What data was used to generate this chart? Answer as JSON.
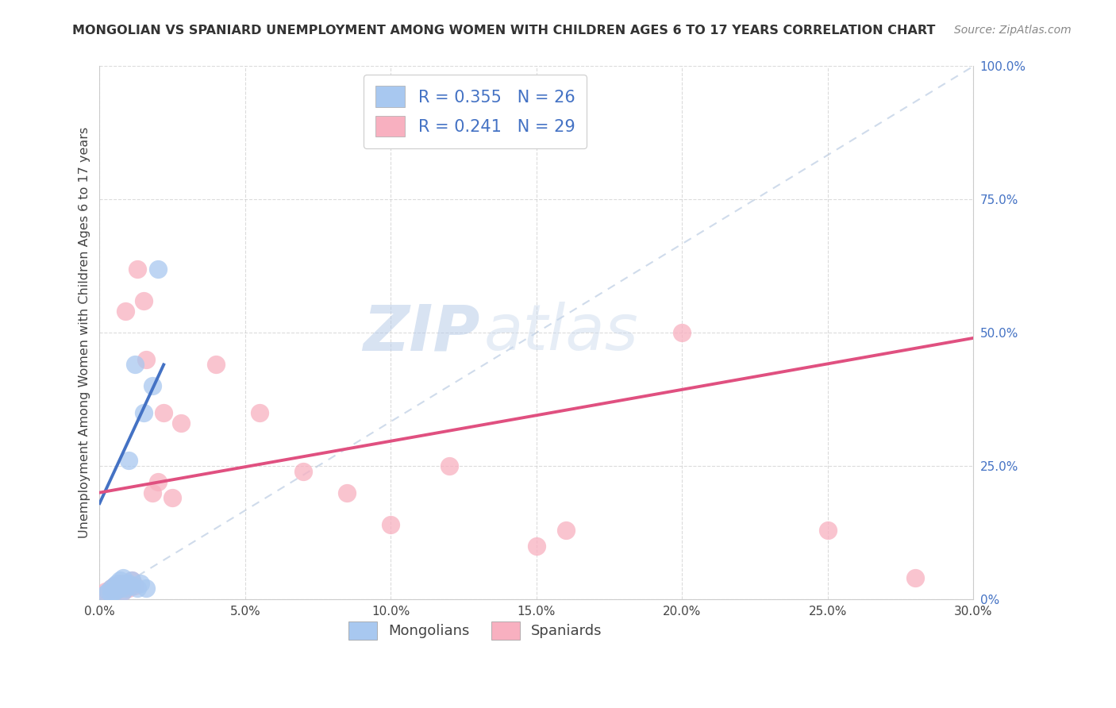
{
  "title": "MONGOLIAN VS SPANIARD UNEMPLOYMENT AMONG WOMEN WITH CHILDREN AGES 6 TO 17 YEARS CORRELATION CHART",
  "source": "Source: ZipAtlas.com",
  "ylabel": "Unemployment Among Women with Children Ages 6 to 17 years",
  "xlim": [
    0.0,
    0.3
  ],
  "ylim": [
    0.0,
    1.0
  ],
  "xticks": [
    0.0,
    0.05,
    0.1,
    0.15,
    0.2,
    0.25,
    0.3
  ],
  "xticklabels": [
    "0.0%",
    "5.0%",
    "10.0%",
    "15.0%",
    "20.0%",
    "25.0%",
    "30.0%"
  ],
  "yticks": [
    0.0,
    0.25,
    0.5,
    0.75,
    1.0
  ],
  "yticklabels": [
    "0%",
    "25.0%",
    "50.0%",
    "75.0%",
    "100.0%"
  ],
  "legend_mongolians": "R = 0.355   N = 26",
  "legend_spaniards": "R = 0.241   N = 29",
  "mongolian_color": "#a8c8f0",
  "spaniard_color": "#f8b0c0",
  "mongolian_line_color": "#4472c4",
  "spaniard_line_color": "#e05080",
  "diagonal_color": "#b0c4de",
  "background_color": "#ffffff",
  "grid_color": "#cccccc",
  "watermark_zip": "ZIP",
  "watermark_atlas": "atlas",
  "mongolian_x": [
    0.002,
    0.003,
    0.004,
    0.004,
    0.005,
    0.005,
    0.006,
    0.006,
    0.007,
    0.007,
    0.008,
    0.008,
    0.008,
    0.009,
    0.009,
    0.01,
    0.01,
    0.011,
    0.011,
    0.012,
    0.013,
    0.014,
    0.015,
    0.016,
    0.018,
    0.02
  ],
  "mongolian_y": [
    0.01,
    0.015,
    0.012,
    0.02,
    0.015,
    0.025,
    0.018,
    0.03,
    0.02,
    0.035,
    0.015,
    0.025,
    0.04,
    0.02,
    0.03,
    0.03,
    0.26,
    0.025,
    0.035,
    0.44,
    0.02,
    0.03,
    0.35,
    0.02,
    0.4,
    0.62
  ],
  "spaniard_x": [
    0.002,
    0.004,
    0.005,
    0.006,
    0.007,
    0.008,
    0.009,
    0.01,
    0.011,
    0.012,
    0.013,
    0.015,
    0.016,
    0.018,
    0.02,
    0.022,
    0.025,
    0.028,
    0.04,
    0.055,
    0.07,
    0.085,
    0.1,
    0.12,
    0.15,
    0.16,
    0.2,
    0.25,
    0.28
  ],
  "spaniard_y": [
    0.015,
    0.02,
    0.025,
    0.018,
    0.03,
    0.015,
    0.54,
    0.02,
    0.035,
    0.025,
    0.62,
    0.56,
    0.45,
    0.2,
    0.22,
    0.35,
    0.19,
    0.33,
    0.44,
    0.35,
    0.24,
    0.2,
    0.14,
    0.25,
    0.1,
    0.13,
    0.5,
    0.13,
    0.04
  ],
  "mongolian_trend_x": [
    0.0,
    0.022
  ],
  "mongolian_trend_y": [
    0.18,
    0.44
  ],
  "spaniard_trend_x": [
    0.0,
    0.3
  ],
  "spaniard_trend_y": [
    0.2,
    0.49
  ]
}
